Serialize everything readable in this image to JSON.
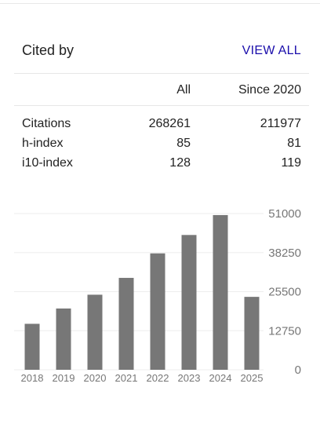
{
  "header": {
    "title": "Cited by",
    "view_all_label": "VIEW ALL"
  },
  "table": {
    "columns": [
      "All",
      "Since 2020"
    ],
    "rows": [
      {
        "label": "Citations",
        "all": "268261",
        "since": "211977"
      },
      {
        "label": "h-index",
        "all": "85",
        "since": "81"
      },
      {
        "label": "i10-index",
        "all": "128",
        "since": "119"
      }
    ]
  },
  "chart_data": {
    "type": "bar",
    "categories": [
      "2018",
      "2019",
      "2020",
      "2021",
      "2022",
      "2023",
      "2024",
      "2025"
    ],
    "values": [
      15000,
      20000,
      24500,
      30000,
      38000,
      44000,
      50500,
      23800
    ],
    "yticks": [
      "51000",
      "38250",
      "25500",
      "12750",
      "0"
    ],
    "ylim": [
      0,
      51000
    ],
    "bar_color": "#777777",
    "grid": true
  }
}
